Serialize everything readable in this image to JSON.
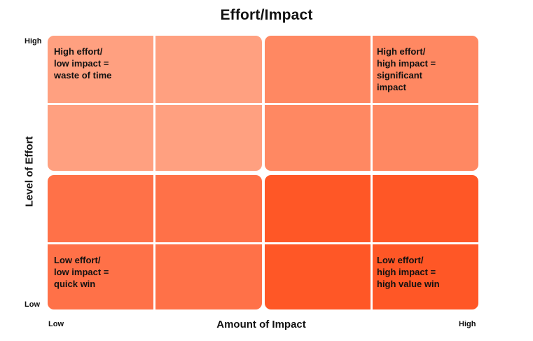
{
  "title": "Effort/Impact",
  "y_axis": {
    "label": "Level of Effort",
    "high": "High",
    "low": "Low"
  },
  "x_axis": {
    "label": "Amount of Impact",
    "low": "Low",
    "high": "High"
  },
  "quadrants": {
    "top_left": {
      "label": "High effort/\nlow impact =\nwaste of time",
      "color": "#FFA080"
    },
    "top_right": {
      "label": "High effort/\nhigh impact =\nsignificant\nimpact",
      "color": "#FF8862"
    },
    "bottom_left": {
      "label": "Low effort/\nlow impact =\nquick win",
      "color": "#FF7148"
    },
    "bottom_right": {
      "label": "Low effort/\nhigh  impact =\nhigh value win",
      "color": "#FF5726"
    }
  }
}
